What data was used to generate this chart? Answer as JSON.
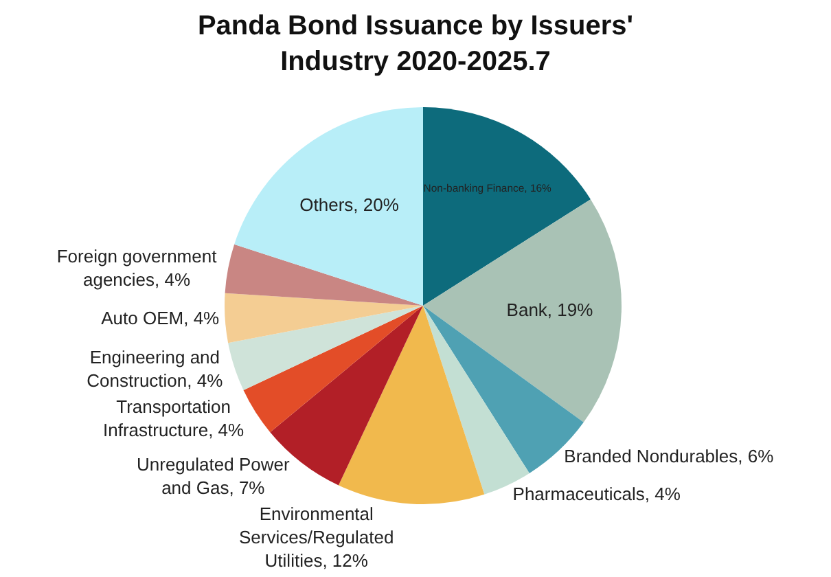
{
  "chart_data": {
    "type": "pie",
    "title": "Panda Bond Issuance by Issuers' Industry 2020-2025.7",
    "categories": [
      "Non-banking Finance",
      "Bank",
      "Branded Nondurables",
      "Pharmaceuticals",
      "Environmental Services/Regulated Utilities",
      "Unregulated Power and Gas",
      "Transportation Infrastructure",
      "Engineering and Construction",
      "Auto OEM",
      "Foreign government agencies",
      "Others"
    ],
    "values": [
      16,
      19,
      6,
      4,
      12,
      7,
      4,
      4,
      4,
      4,
      20
    ],
    "colors": [
      "#0d6b7c",
      "#a9c2b5",
      "#4fa1b3",
      "#c3dfd3",
      "#f1b94d",
      "#b21f27",
      "#e34d28",
      "#cfe3d9",
      "#f4cd93",
      "#c98683",
      "#b8eef8"
    ],
    "value_labels": [
      "16%",
      "19%",
      "6%",
      "4%",
      "12%",
      "7%",
      "4%",
      "4%",
      "4%",
      "4%",
      "20%"
    ],
    "legend": false
  }
}
